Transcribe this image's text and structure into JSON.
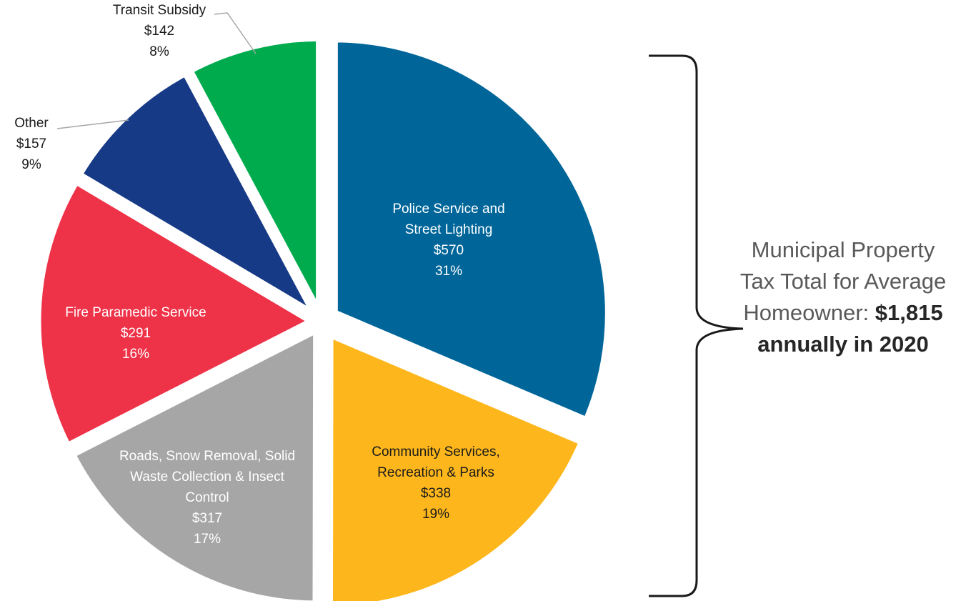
{
  "chart_data": {
    "type": "pie",
    "title": "",
    "slices": [
      {
        "lines": [
          "Police Service and",
          "Street Lighting"
        ],
        "value": 570,
        "value_label": "$570",
        "percent_label": "31%",
        "color": "#006699",
        "text_color": "#ffffff"
      },
      {
        "lines": [
          "Community Services,",
          "Recreation & Parks"
        ],
        "value": 338,
        "value_label": "$338",
        "percent_label": "19%",
        "color": "#fdb71c",
        "text_color": "#1a1a1a"
      },
      {
        "lines": [
          "Roads, Snow Removal, Solid",
          "Waste Collection & Insect",
          "Control"
        ],
        "value": 317,
        "value_label": "$317",
        "percent_label": "17%",
        "color": "#a6a6a6",
        "text_color": "#ffffff"
      },
      {
        "lines": [
          "Fire Paramedic Service"
        ],
        "value": 291,
        "value_label": "$291",
        "percent_label": "16%",
        "color": "#ee3248",
        "text_color": "#ffffff"
      },
      {
        "lines": [
          "Other"
        ],
        "value": 157,
        "value_label": "$157",
        "percent_label": "9%",
        "color": "#163a85",
        "text_color": "#1a1a1a"
      },
      {
        "lines": [
          "Transit Subsidy"
        ],
        "value": 142,
        "value_label": "$142",
        "percent_label": "8%",
        "color": "#00ab4e",
        "text_color": "#1a1a1a"
      }
    ]
  },
  "summary": {
    "line1": "Municipal Property",
    "line2": "Tax Total for Average",
    "line3_prefix": "Homeowner: ",
    "line3_bold": "$1,815",
    "line4_bold": "annually in 2020"
  }
}
